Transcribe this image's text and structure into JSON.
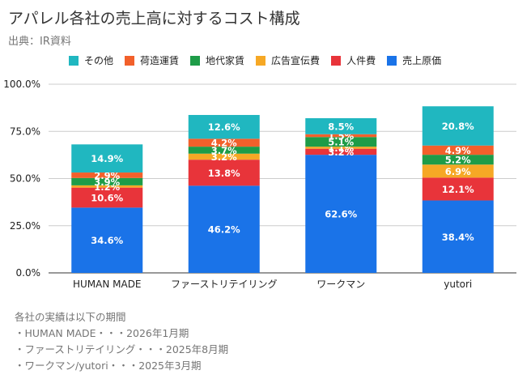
{
  "header": {
    "title": "アパレル各社の売上高に対するコスト構成",
    "source": "出典：IR資料"
  },
  "colors": {
    "売上原価": "#1a73e8",
    "人件費": "#e8343a",
    "広告宣伝費": "#f6a825",
    "地代家賃": "#1e9c48",
    "荷造運賃": "#f2602b",
    "その他": "#20b7c0"
  },
  "chart_data": {
    "type": "bar",
    "stacked": true,
    "title": "アパレル各社の売上高に対するコスト構成",
    "categories": [
      "HUMAN MADE",
      "ファーストリテイリング",
      "ワークマン",
      "yutori"
    ],
    "series": [
      {
        "name": "売上原価",
        "values": [
          34.6,
          46.2,
          62.6,
          38.4
        ],
        "labels": [
          "34.6%",
          "46.2%",
          "62.6%",
          "38.4%"
        ]
      },
      {
        "name": "人件費",
        "values": [
          10.6,
          13.8,
          3.2,
          12.1
        ],
        "labels": [
          "10.6%",
          "13.8%",
          "3.2%",
          "12.1%"
        ]
      },
      {
        "name": "広告宣伝費",
        "values": [
          1.2,
          3.2,
          1.1,
          6.9
        ],
        "labels": [
          "1.2%",
          "3.2%",
          "1.1%",
          "6.9%"
        ]
      },
      {
        "name": "地代家賃",
        "values": [
          3.9,
          3.7,
          5.1,
          5.2
        ],
        "labels": [
          "3.9%",
          "3.7%",
          "5.1%",
          "5.2%"
        ]
      },
      {
        "name": "荷造運賃",
        "values": [
          2.9,
          4.2,
          1.5,
          4.9
        ],
        "labels": [
          "2.9%",
          "4.2%",
          "1.5%",
          "4.9%"
        ]
      },
      {
        "name": "その他",
        "values": [
          14.9,
          12.6,
          8.5,
          20.8
        ],
        "labels": [
          "14.9%",
          "12.6%",
          "8.5%",
          "20.8%"
        ]
      }
    ],
    "legend_order": [
      "その他",
      "荷造運賃",
      "地代家賃",
      "広告宣伝費",
      "人件費",
      "売上原価"
    ],
    "ylim": [
      0,
      100
    ],
    "yticks": [
      0,
      25,
      50,
      75,
      100
    ],
    "ytick_labels": [
      "0.0%",
      "25.0%",
      "50.0%",
      "75.0%",
      "100.0%"
    ],
    "grid": true,
    "legend_position": "top"
  },
  "legend": {
    "items": [
      "その他",
      "荷造運賃",
      "地代家賃",
      "広告宣伝費",
      "人件費",
      "売上原価"
    ]
  },
  "notes": {
    "heading": "各社の実績は以下の期間",
    "lines": [
      "・HUMAN MADE・・・2026年1月期",
      "・ファーストリテイリング・・・2025年8月期",
      "・ワークマン/yutori・・・2025年3月期"
    ]
  }
}
